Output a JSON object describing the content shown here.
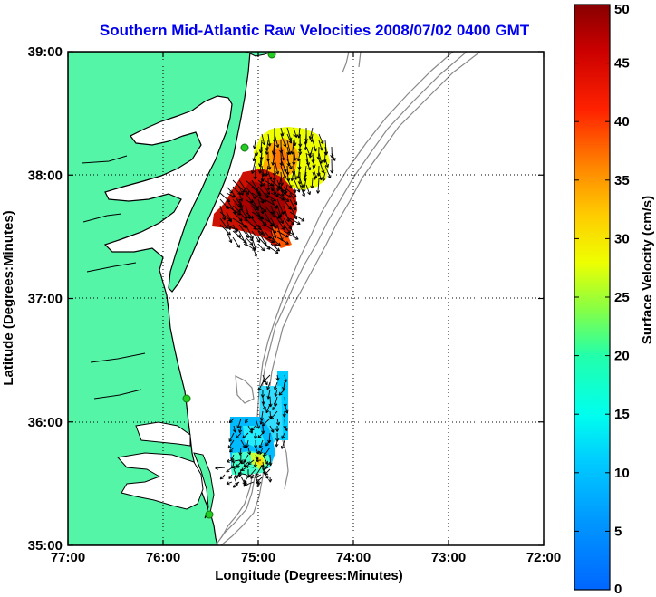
{
  "title": "Southern Mid-Atlantic Raw Velocities 2008/07/02 0400 GMT",
  "axes": {
    "xlabel": "Longitude (Degrees:Minutes)",
    "ylabel": "Latitude (Degrees:Minutes)",
    "x_ticks": [
      "77:00",
      "76:00",
      "75:00",
      "74:00",
      "73:00",
      "72:00"
    ],
    "y_ticks": [
      "39:00",
      "38:00",
      "37:00",
      "36:00",
      "35:00"
    ],
    "xlim": [
      -77,
      -72
    ],
    "ylim": [
      35,
      39
    ],
    "grid": "dotted"
  },
  "colorbar": {
    "label": "Surface Velocity (cm/s)",
    "ticks": [
      "0",
      "5",
      "10",
      "15",
      "20",
      "25",
      "30",
      "35",
      "40",
      "45",
      "50"
    ],
    "range": [
      0,
      50
    ],
    "colormap": "jet"
  },
  "colors": {
    "title": "#0000ee",
    "land": "#55f5a8",
    "coastline": "#000000",
    "bathymetry": "#888888",
    "station": "#22cc22"
  },
  "icons": {
    "stations": "hf-radar-station-marker",
    "vectors": "velocity-arrow"
  },
  "velocity_regions": [
    {
      "name": "northern-field",
      "speed_range_cm_s": [
        25,
        50
      ]
    },
    {
      "name": "southern-field",
      "speed_range_cm_s": [
        10,
        25
      ]
    }
  ]
}
